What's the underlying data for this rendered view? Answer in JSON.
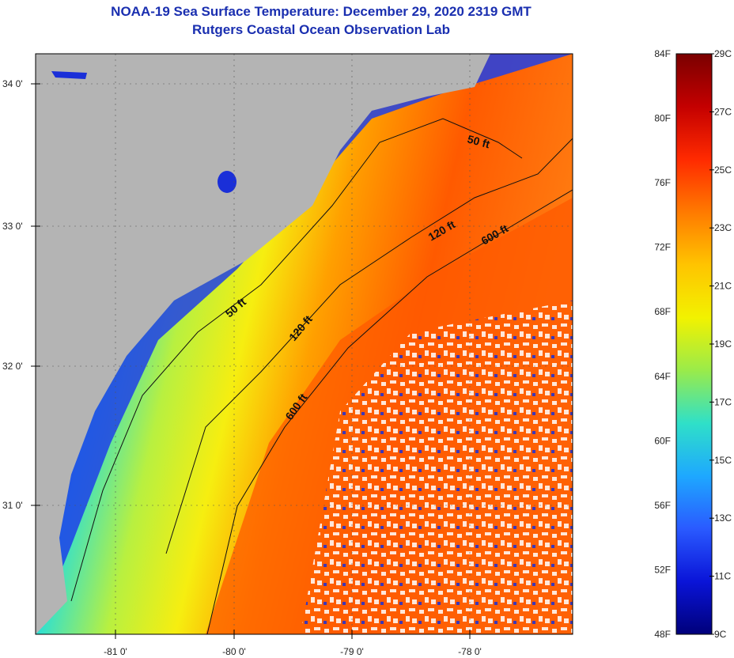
{
  "title": {
    "line1": "NOAA-19 Sea Surface Temperature:  December 29, 2020 2319 GMT",
    "line2": "Rutgers Coastal Ocean Observation Lab"
  },
  "map": {
    "longitude_ticks": [
      "-81 0'",
      "-80 0'",
      "-79 0'",
      "-78 0'"
    ],
    "latitude_ticks": [
      "34 0'",
      "33 0'",
      "32 0'",
      "31 0'"
    ],
    "contour_labels": [
      "50 ft",
      "120 ft",
      "600 ft",
      "50 ft",
      "120 ft",
      "600 ft"
    ],
    "land_color": "#b4b4b4",
    "cloud_color": "#ffffff"
  },
  "colorbar": {
    "fahrenheit_labels": [
      "84F",
      "80F",
      "76F",
      "72F",
      "68F",
      "64F",
      "60F",
      "56F",
      "52F",
      "48F"
    ],
    "celsius_labels": [
      "29C",
      "27C",
      "25C",
      "23C",
      "21C",
      "19C",
      "17C",
      "15C",
      "13C",
      "11C",
      "9C"
    ],
    "gradient_colors": [
      "#7a0000",
      "#c40000",
      "#ff2a00",
      "#ff7a00",
      "#ffc400",
      "#f2f200",
      "#9aeb4a",
      "#2fe0c8",
      "#1ea8ff",
      "#2a5aff",
      "#0a14d8",
      "#00007a"
    ]
  }
}
